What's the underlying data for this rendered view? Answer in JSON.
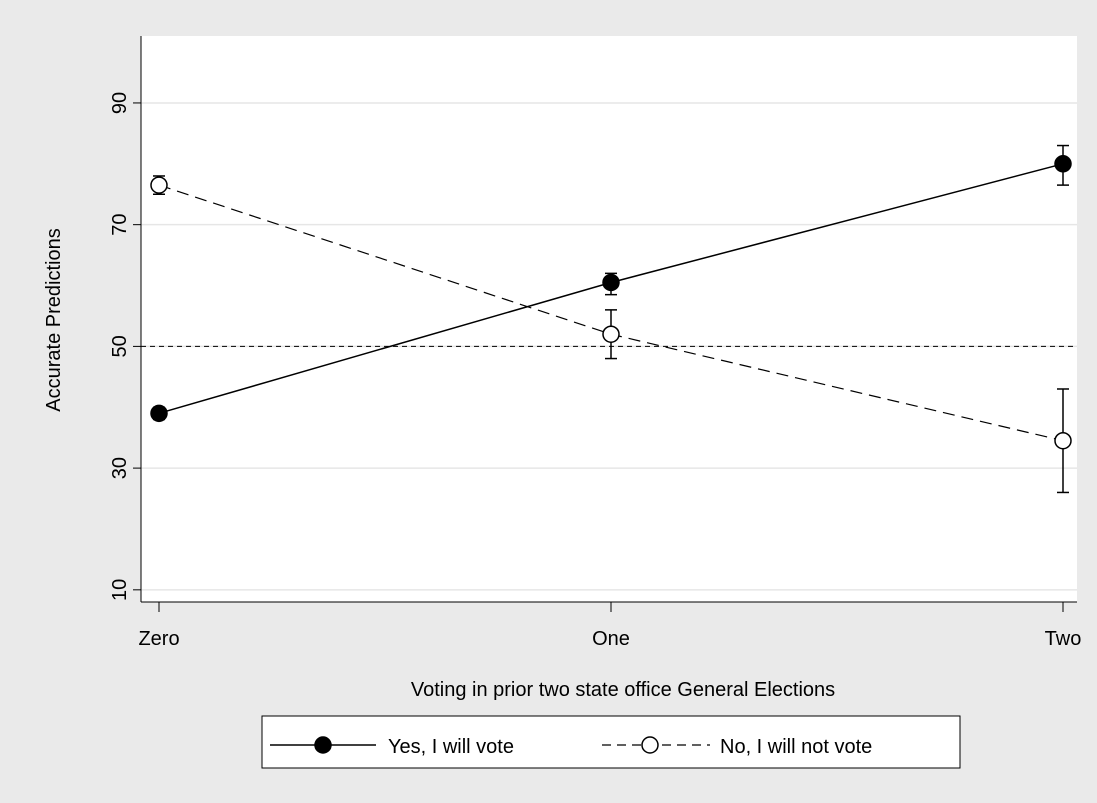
{
  "colors": {
    "outer_background": "#eaeaea",
    "plot_background": "#ffffff",
    "gridline": "#e6e6e6",
    "ink": "#000000"
  },
  "chart_data": {
    "type": "line",
    "title": "",
    "xlabel": "Voting in prior two state office General Elections",
    "ylabel": "Accurate Predictions",
    "categories": [
      "Zero",
      "One",
      "Two"
    ],
    "x": [
      0,
      1,
      2
    ],
    "yticks": [
      10,
      30,
      50,
      70,
      90
    ],
    "ylim": [
      8,
      101
    ],
    "grid": true,
    "legend": {
      "position": "bottom",
      "entries": [
        "Yes, I will vote",
        "No, I will not vote"
      ]
    },
    "reference_line": {
      "y": 50,
      "style": "dashed"
    },
    "series": [
      {
        "name": "Yes, I will vote",
        "marker": "filled-circle",
        "line_style": "solid",
        "values": [
          39,
          60.5,
          80
        ],
        "ci_low": [
          38,
          58.5,
          76.5
        ],
        "ci_high": [
          40,
          62,
          83
        ]
      },
      {
        "name": "No, I will not vote",
        "marker": "hollow-circle",
        "line_style": "dashed",
        "values": [
          76.5,
          52,
          34.5
        ],
        "ci_low": [
          75,
          48,
          26
        ],
        "ci_high": [
          78,
          56,
          43
        ]
      }
    ]
  }
}
